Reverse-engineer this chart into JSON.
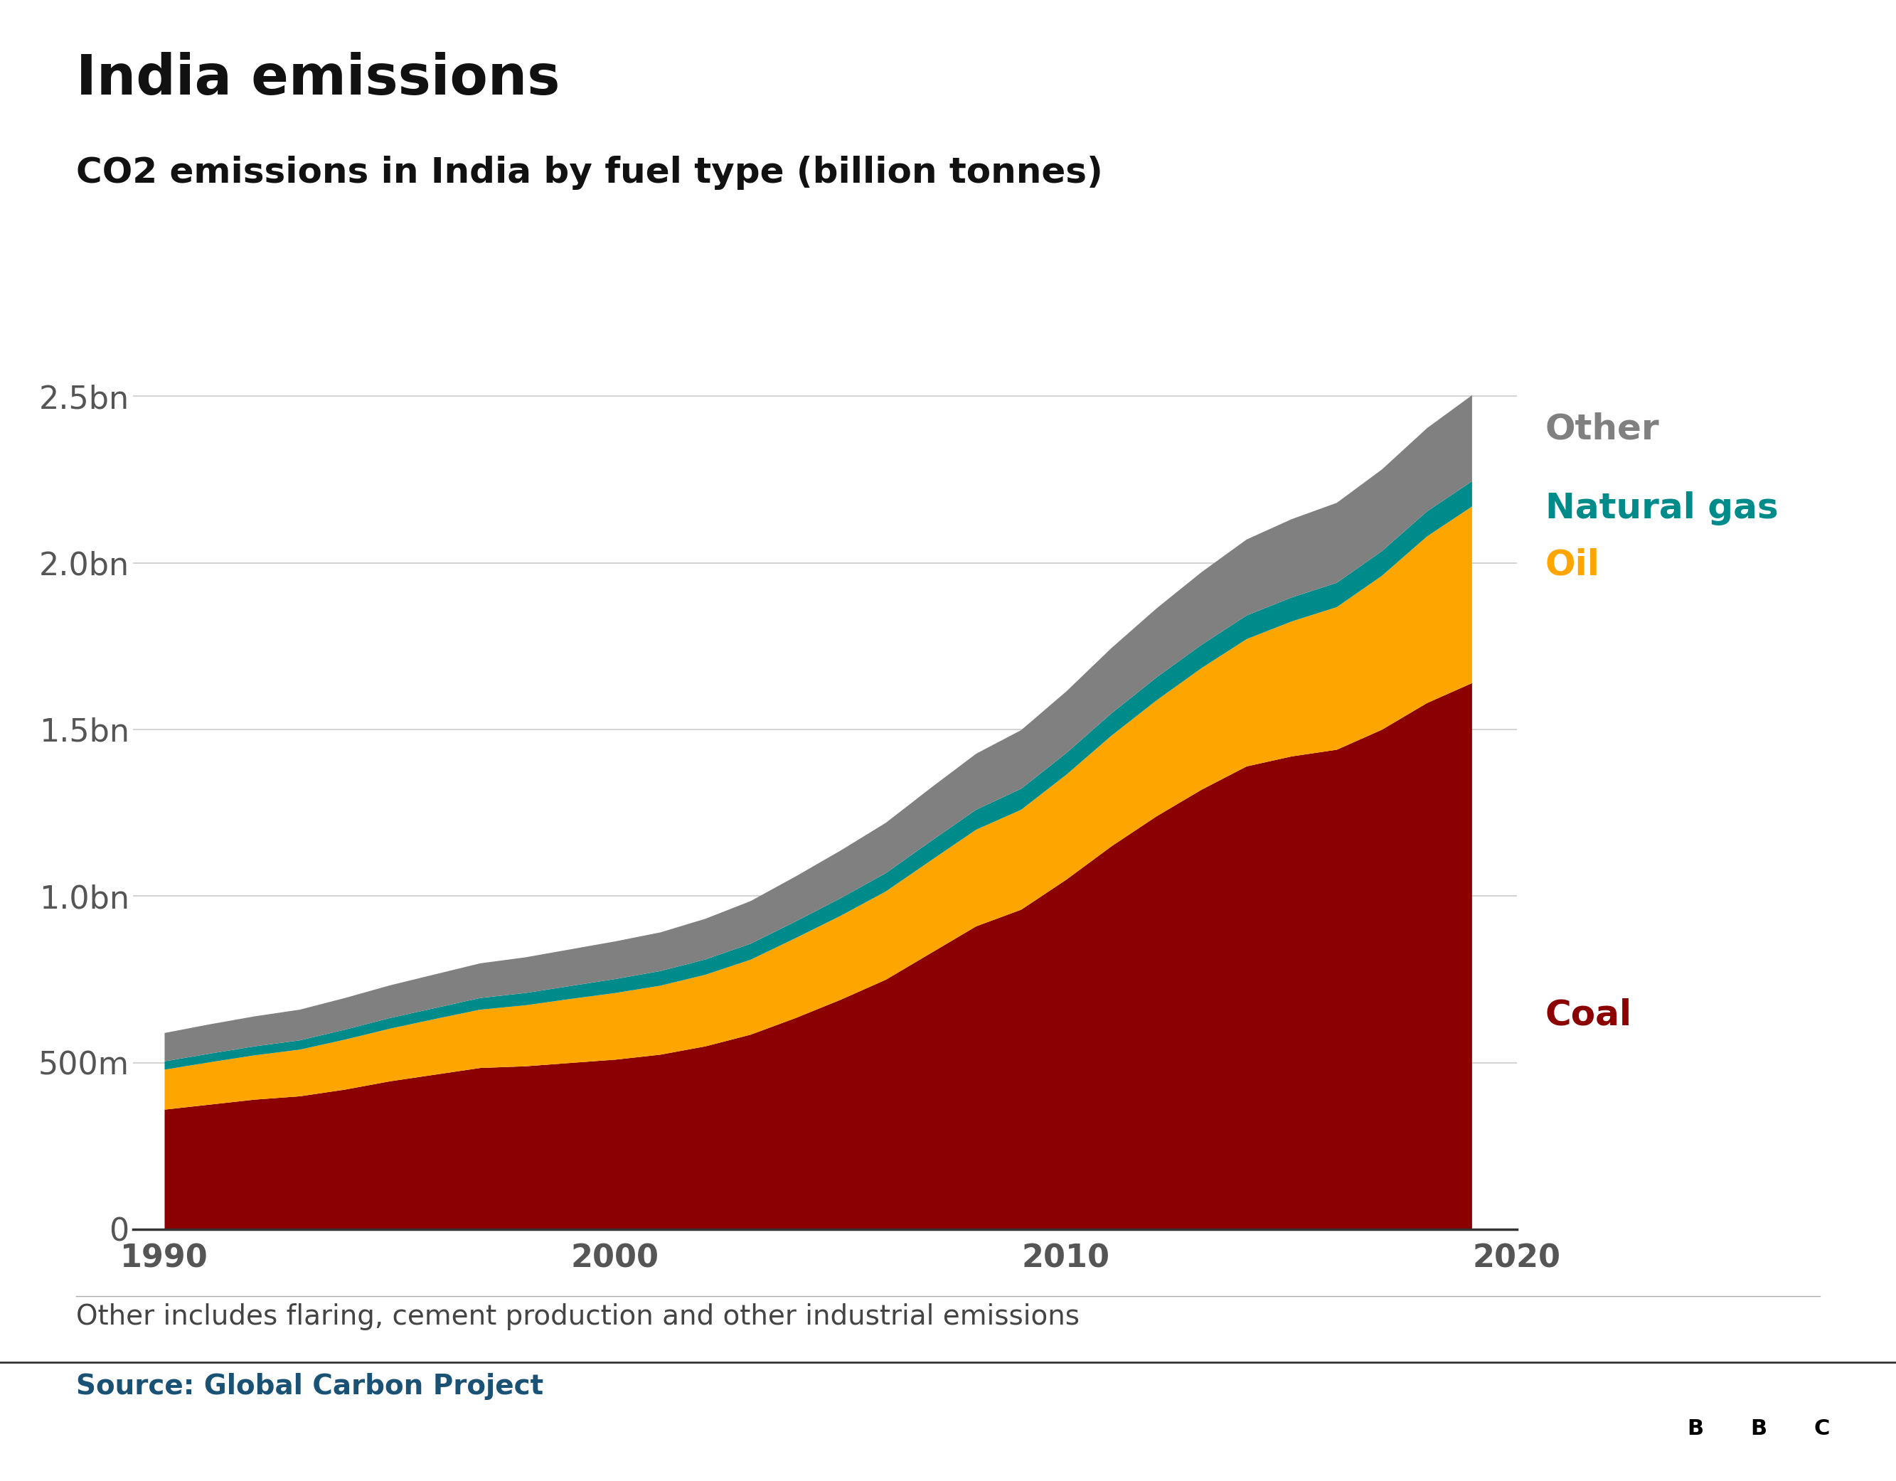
{
  "title": "India emissions",
  "subtitle": "CO2 emissions in India by fuel type (billion tonnes)",
  "footnote": "Other includes flaring, cement production and other industrial emissions",
  "source": "Source: Global Carbon Project",
  "years": [
    1990,
    1991,
    1992,
    1993,
    1994,
    1995,
    1996,
    1997,
    1998,
    1999,
    2000,
    2001,
    2002,
    2003,
    2004,
    2005,
    2006,
    2007,
    2008,
    2009,
    2010,
    2011,
    2012,
    2013,
    2014,
    2015,
    2016,
    2017,
    2018,
    2019
  ],
  "coal": [
    0.36,
    0.375,
    0.39,
    0.4,
    0.42,
    0.445,
    0.465,
    0.485,
    0.49,
    0.5,
    0.51,
    0.525,
    0.55,
    0.585,
    0.635,
    0.69,
    0.75,
    0.83,
    0.91,
    0.96,
    1.05,
    1.15,
    1.24,
    1.32,
    1.39,
    1.42,
    1.44,
    1.5,
    1.58,
    1.64
  ],
  "oil": [
    0.12,
    0.127,
    0.133,
    0.14,
    0.15,
    0.158,
    0.167,
    0.175,
    0.183,
    0.192,
    0.2,
    0.207,
    0.215,
    0.225,
    0.24,
    0.252,
    0.265,
    0.278,
    0.29,
    0.3,
    0.315,
    0.332,
    0.348,
    0.365,
    0.382,
    0.405,
    0.428,
    0.462,
    0.5,
    0.53
  ],
  "gas": [
    0.025,
    0.026,
    0.027,
    0.028,
    0.03,
    0.032,
    0.033,
    0.035,
    0.037,
    0.039,
    0.042,
    0.044,
    0.046,
    0.048,
    0.05,
    0.053,
    0.055,
    0.058,
    0.06,
    0.063,
    0.065,
    0.067,
    0.069,
    0.07,
    0.071,
    0.072,
    0.073,
    0.074,
    0.075,
    0.076
  ],
  "other": [
    0.085,
    0.088,
    0.09,
    0.092,
    0.095,
    0.098,
    0.101,
    0.104,
    0.107,
    0.11,
    0.113,
    0.116,
    0.122,
    0.128,
    0.135,
    0.143,
    0.151,
    0.16,
    0.168,
    0.176,
    0.185,
    0.196,
    0.207,
    0.218,
    0.228,
    0.235,
    0.24,
    0.245,
    0.25,
    0.258
  ],
  "coal_color": "#8B0000",
  "oil_color": "#FFA500",
  "gas_color": "#008B8B",
  "other_color": "#808080",
  "coal_label_color": "#8B0000",
  "oil_label_color": "#FFA500",
  "gas_label_color": "#008B8B",
  "other_label_color": "#808080",
  "background_color": "#ffffff",
  "ylim": [
    0,
    2.8
  ],
  "yticks": [
    0,
    0.5,
    1.0,
    1.5,
    2.0,
    2.5
  ],
  "ytick_labels": [
    "0",
    "500m",
    "1.0bn",
    "1.5bn",
    "2.0bn",
    "2.5bn"
  ],
  "title_fontsize": 56,
  "subtitle_fontsize": 36,
  "tick_fontsize": 32,
  "label_fontsize": 36,
  "footnote_fontsize": 28,
  "source_fontsize": 28
}
